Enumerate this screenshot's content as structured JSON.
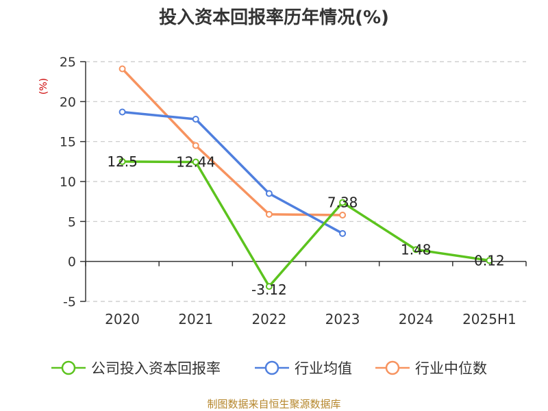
{
  "title": "投入资本回报率历年情况(%)",
  "source": "制图数据来自恒生聚源数据库",
  "chart_data": {
    "type": "line",
    "title": "投入资本回报率历年情况(%)",
    "unit": "(%)",
    "categories": [
      "2020",
      "2021",
      "2022",
      "2023",
      "2024",
      "2025H1"
    ],
    "ylim": [
      -5,
      25
    ],
    "yticks": [
      25,
      20,
      15,
      10,
      5,
      0,
      -5
    ],
    "grid": true,
    "legend_position": "bottom",
    "series": [
      {
        "name": "公司投入资本回报率",
        "color": "#5cc31e",
        "values": [
          12.5,
          12.44,
          -3.12,
          7.38,
          1.48,
          0.12
        ],
        "labels": [
          "12.5",
          "12.44",
          "-3.12",
          "7.38",
          "1.48",
          "0.12"
        ]
      },
      {
        "name": "行业均值",
        "color": "#4f7fde",
        "values": [
          18.7,
          17.8,
          8.5,
          3.5,
          null,
          null
        ]
      },
      {
        "name": "行业中位数",
        "color": "#f7935f",
        "values": [
          24.1,
          14.5,
          5.9,
          5.8,
          null,
          null
        ]
      }
    ]
  }
}
